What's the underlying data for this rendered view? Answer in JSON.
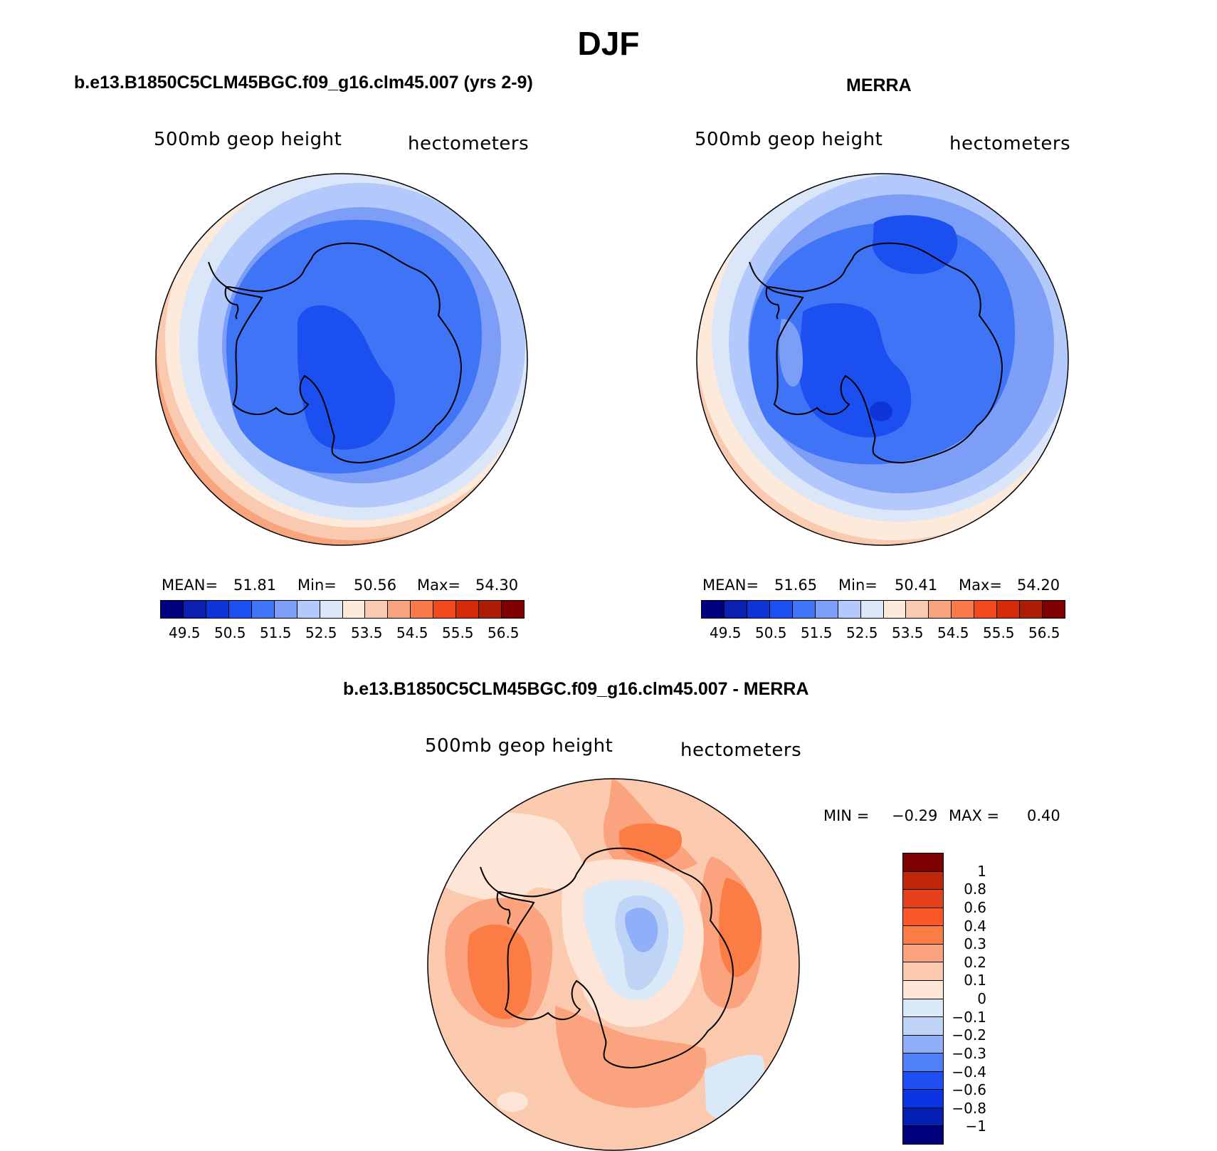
{
  "figure": {
    "title": "DJF"
  },
  "panels": {
    "model": {
      "title": "b.e13.B1850C5CLM45BGC.f09_g16.clm45.007 (yrs 2-9)",
      "variable": "500mb geop height",
      "units": "hectometers",
      "mean_label": "MEAN=",
      "mean": "51.81",
      "min_label": "Min=",
      "min": "50.56",
      "max_label": "Max=",
      "max": "54.30"
    },
    "obs": {
      "title": "MERRA",
      "variable": "500mb geop height",
      "units": "hectometers",
      "mean_label": "MEAN=",
      "mean": "51.65",
      "min_label": "Min=",
      "min": "50.41",
      "max_label": "Max=",
      "max": "54.20"
    },
    "diff": {
      "title": "b.e13.B1850C5CLM45BGC.f09_g16.clm45.007 - MERRA",
      "variable": "500mb geop height",
      "units": "hectometers",
      "min_label": "MIN =",
      "min": "−0.29",
      "max_label": "MAX =",
      "max": "0.40"
    }
  },
  "colorbars": {
    "field_colors": [
      "#00007f",
      "#0b1fb0",
      "#0f35d8",
      "#1c4ff0",
      "#3f74f7",
      "#7d9ef7",
      "#b3c8fb",
      "#dbe7f8",
      "#fdeadb",
      "#f9c9b0",
      "#f7a47f",
      "#f87a4b",
      "#f04a1c",
      "#d32a0a",
      "#ad1c04",
      "#7f0000"
    ],
    "field_ticks": [
      "49.5",
      "50.5",
      "51.5",
      "52.5",
      "53.5",
      "54.5",
      "55.5",
      "56.5"
    ],
    "diff_colors": [
      "#7f0000",
      "#c0260a",
      "#e5401a",
      "#fb5728",
      "#fb7c45",
      "#fba37f",
      "#fbc9ae",
      "#fde6d8",
      "#dae9f8",
      "#bed3f6",
      "#8fb0f8",
      "#4f80f7",
      "#1f4ff3",
      "#0b35e2",
      "#0520b5",
      "#00007f"
    ],
    "diff_ticks": [
      "1",
      "0.8",
      "0.6",
      "0.4",
      "0.3",
      "0.2",
      "0.1",
      "0",
      "−0.1",
      "−0.2",
      "−0.3",
      "−0.4",
      "−0.6",
      "−0.8",
      "−1"
    ]
  }
}
